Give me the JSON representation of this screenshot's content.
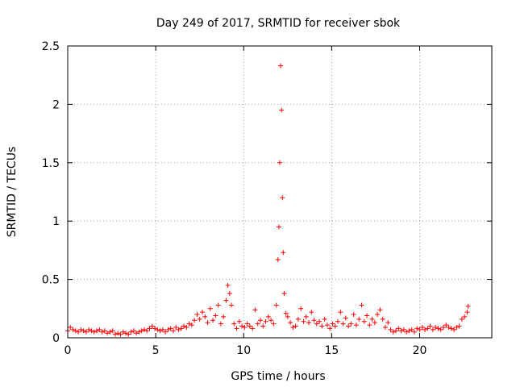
{
  "chart_data": {
    "type": "scatter",
    "title": "Day 249 of 2017, SRMTID for receiver sbok",
    "xlabel": "GPS time / hours",
    "ylabel": "SRMTID / TECUs",
    "xlim": [
      0,
      24.1
    ],
    "ylim": [
      0,
      2.5
    ],
    "x_ticks": [
      0,
      5,
      10,
      15,
      20
    ],
    "x_tick_labels": [
      "0",
      "5",
      "10",
      "15",
      "20"
    ],
    "y_ticks": [
      0,
      0.5,
      1,
      1.5,
      2,
      2.5
    ],
    "y_tick_labels": [
      "0",
      "0.5",
      "1",
      "1.5",
      "2",
      "2.5"
    ],
    "grid": true,
    "legend": "none",
    "marker": "+",
    "color": "#ff0000",
    "series": [
      {
        "x": [
          0.0,
          0.15,
          0.3,
          0.45,
          0.6,
          0.75,
          0.9,
          1.05,
          1.2,
          1.35,
          1.5,
          1.65,
          1.8,
          1.95,
          2.1,
          2.25,
          2.4,
          2.55,
          2.7,
          2.85,
          3.0,
          3.15,
          3.3,
          3.45,
          3.6,
          3.75,
          3.9,
          4.05,
          4.2,
          4.35,
          4.5,
          4.65,
          4.8,
          4.95,
          5.1,
          5.25,
          5.4,
          5.55,
          5.7,
          5.85,
          6.0,
          6.15,
          6.3,
          6.45,
          6.6,
          6.75,
          6.9,
          7.05,
          7.2,
          7.35,
          7.5,
          7.65,
          7.8,
          7.95,
          8.1,
          8.25,
          8.4,
          8.55,
          8.7,
          8.85,
          9.0,
          9.1,
          9.2,
          9.3,
          9.45,
          9.6,
          9.75,
          9.9,
          10.05,
          10.2,
          10.35,
          10.5,
          10.65,
          10.8,
          10.95,
          11.1,
          11.25,
          11.4,
          11.55,
          11.7,
          11.85,
          11.95,
          12.0,
          12.05,
          12.1,
          12.15,
          12.2,
          12.25,
          12.3,
          12.4,
          12.5,
          12.65,
          12.8,
          12.95,
          13.1,
          13.25,
          13.4,
          13.55,
          13.7,
          13.85,
          14.0,
          14.15,
          14.3,
          14.45,
          14.6,
          14.75,
          14.9,
          15.05,
          15.2,
          15.35,
          15.5,
          15.65,
          15.8,
          15.95,
          16.1,
          16.25,
          16.4,
          16.55,
          16.7,
          16.85,
          17.0,
          17.15,
          17.3,
          17.45,
          17.6,
          17.75,
          17.9,
          18.05,
          18.2,
          18.35,
          18.5,
          18.65,
          18.8,
          18.95,
          19.1,
          19.25,
          19.4,
          19.55,
          19.7,
          19.85,
          20.0,
          20.15,
          20.3,
          20.45,
          20.6,
          20.75,
          20.9,
          21.05,
          21.2,
          21.35,
          21.5,
          21.65,
          21.8,
          21.95,
          22.1,
          22.25,
          22.4,
          22.55,
          22.7,
          22.75
        ],
        "y": [
          0.06,
          0.09,
          0.07,
          0.06,
          0.05,
          0.07,
          0.06,
          0.05,
          0.07,
          0.06,
          0.05,
          0.06,
          0.07,
          0.05,
          0.06,
          0.04,
          0.05,
          0.06,
          0.03,
          0.04,
          0.03,
          0.05,
          0.04,
          0.03,
          0.05,
          0.06,
          0.04,
          0.05,
          0.06,
          0.07,
          0.06,
          0.08,
          0.1,
          0.08,
          0.07,
          0.06,
          0.07,
          0.05,
          0.07,
          0.08,
          0.06,
          0.09,
          0.07,
          0.08,
          0.1,
          0.09,
          0.12,
          0.11,
          0.15,
          0.2,
          0.16,
          0.22,
          0.18,
          0.13,
          0.25,
          0.15,
          0.19,
          0.28,
          0.12,
          0.18,
          0.32,
          0.45,
          0.38,
          0.28,
          0.12,
          0.08,
          0.14,
          0.1,
          0.09,
          0.12,
          0.1,
          0.08,
          0.24,
          0.12,
          0.15,
          0.1,
          0.14,
          0.18,
          0.15,
          0.12,
          0.28,
          0.67,
          0.95,
          1.5,
          2.33,
          1.95,
          1.2,
          0.73,
          0.38,
          0.21,
          0.18,
          0.13,
          0.09,
          0.1,
          0.16,
          0.25,
          0.14,
          0.18,
          0.13,
          0.22,
          0.15,
          0.12,
          0.14,
          0.1,
          0.16,
          0.11,
          0.08,
          0.12,
          0.1,
          0.14,
          0.22,
          0.12,
          0.17,
          0.1,
          0.12,
          0.2,
          0.11,
          0.16,
          0.28,
          0.14,
          0.19,
          0.11,
          0.16,
          0.13,
          0.2,
          0.24,
          0.16,
          0.09,
          0.13,
          0.07,
          0.05,
          0.06,
          0.08,
          0.06,
          0.07,
          0.05,
          0.06,
          0.07,
          0.05,
          0.08,
          0.07,
          0.09,
          0.07,
          0.08,
          0.1,
          0.07,
          0.09,
          0.08,
          0.07,
          0.09,
          0.11,
          0.09,
          0.08,
          0.07,
          0.09,
          0.1,
          0.16,
          0.18,
          0.22,
          0.27
        ]
      }
    ]
  }
}
